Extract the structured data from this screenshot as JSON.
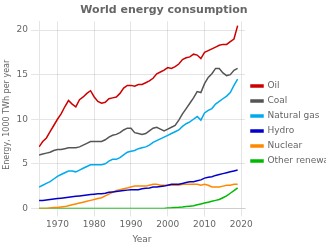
{
  "chart_data": {
    "type": "line",
    "title": "World energy consumption",
    "xlabel": "Year",
    "ylabel": "Energy, 1000 TWh per year",
    "xlim": [
      1965,
      2021
    ],
    "ylim": [
      0,
      21
    ],
    "xticks": [
      1970,
      1980,
      1990,
      2000,
      2010,
      2020
    ],
    "yticks": [
      0,
      5,
      10,
      15,
      20
    ],
    "grid": true,
    "legend": "right",
    "x": [
      1965,
      1966,
      1967,
      1968,
      1969,
      1970,
      1971,
      1972,
      1973,
      1974,
      1975,
      1976,
      1977,
      1978,
      1979,
      1980,
      1981,
      1982,
      1983,
      1984,
      1985,
      1986,
      1987,
      1988,
      1989,
      1990,
      1991,
      1992,
      1993,
      1994,
      1995,
      1996,
      1997,
      1998,
      1999,
      2000,
      2001,
      2002,
      2003,
      2004,
      2005,
      2006,
      2007,
      2008,
      2009,
      2010,
      2011,
      2012,
      2013,
      2014,
      2015,
      2016,
      2017,
      2018,
      2019
    ],
    "series": [
      {
        "name": "Oil",
        "color": "#cc0000",
        "values": [
          6.9,
          7.5,
          7.9,
          8.6,
          9.3,
          10.0,
          10.6,
          11.4,
          12.1,
          11.7,
          11.4,
          12.2,
          12.5,
          12.9,
          13.2,
          12.5,
          12.0,
          11.8,
          11.9,
          12.3,
          12.4,
          12.5,
          12.9,
          13.5,
          13.8,
          13.8,
          13.7,
          13.9,
          13.9,
          14.1,
          14.3,
          14.6,
          15.1,
          15.3,
          15.5,
          15.8,
          15.7,
          15.9,
          16.2,
          16.7,
          16.9,
          17.0,
          17.3,
          17.2,
          16.8,
          17.5,
          17.7,
          17.9,
          18.1,
          18.3,
          18.4,
          18.4,
          18.7,
          19.0,
          20.5
        ]
      },
      {
        "name": "Coal",
        "color": "#555555",
        "values": [
          6.0,
          6.1,
          6.2,
          6.3,
          6.5,
          6.6,
          6.6,
          6.7,
          6.8,
          6.8,
          6.8,
          6.9,
          7.1,
          7.3,
          7.5,
          7.5,
          7.5,
          7.5,
          7.7,
          8.0,
          8.2,
          8.3,
          8.5,
          8.8,
          9.0,
          9.0,
          8.5,
          8.4,
          8.3,
          8.4,
          8.7,
          9.0,
          9.1,
          8.9,
          8.7,
          8.9,
          9.1,
          9.3,
          9.9,
          10.6,
          11.2,
          11.8,
          12.4,
          13.1,
          13.0,
          14.0,
          14.7,
          15.1,
          15.7,
          15.7,
          15.2,
          14.9,
          15.0,
          15.5,
          15.7
        ]
      },
      {
        "name": "Natural gas",
        "color": "#00aaee",
        "values": [
          2.4,
          2.6,
          2.8,
          3.0,
          3.3,
          3.6,
          3.8,
          4.0,
          4.2,
          4.2,
          4.1,
          4.3,
          4.5,
          4.7,
          4.9,
          4.9,
          4.9,
          4.9,
          5.0,
          5.3,
          5.5,
          5.5,
          5.7,
          6.0,
          6.3,
          6.4,
          6.5,
          6.7,
          6.8,
          6.9,
          7.1,
          7.4,
          7.6,
          7.8,
          8.0,
          8.2,
          8.4,
          8.6,
          8.8,
          9.2,
          9.5,
          9.7,
          10.0,
          10.3,
          9.9,
          10.7,
          11.0,
          11.2,
          11.7,
          12.0,
          12.3,
          12.6,
          13.0,
          13.8,
          14.5
        ]
      },
      {
        "name": "Hydro",
        "color": "#0000cc",
        "values": [
          0.9,
          0.9,
          0.95,
          1.0,
          1.05,
          1.1,
          1.15,
          1.2,
          1.25,
          1.3,
          1.35,
          1.4,
          1.45,
          1.5,
          1.55,
          1.6,
          1.65,
          1.65,
          1.7,
          1.8,
          1.85,
          1.9,
          1.95,
          2.0,
          2.05,
          2.1,
          2.1,
          2.1,
          2.2,
          2.25,
          2.3,
          2.4,
          2.4,
          2.45,
          2.5,
          2.6,
          2.7,
          2.7,
          2.7,
          2.8,
          2.9,
          3.0,
          3.0,
          3.1,
          3.2,
          3.4,
          3.5,
          3.55,
          3.7,
          3.8,
          3.9,
          4.0,
          4.1,
          4.2,
          4.3
        ]
      },
      {
        "name": "Nuclear",
        "color": "#ff8800",
        "values": [
          0.0,
          0.0,
          0.0,
          0.05,
          0.1,
          0.1,
          0.15,
          0.2,
          0.3,
          0.4,
          0.5,
          0.6,
          0.7,
          0.8,
          0.9,
          1.0,
          1.1,
          1.2,
          1.4,
          1.6,
          1.8,
          2.0,
          2.1,
          2.2,
          2.3,
          2.4,
          2.5,
          2.5,
          2.5,
          2.5,
          2.6,
          2.7,
          2.7,
          2.6,
          2.6,
          2.6,
          2.6,
          2.6,
          2.6,
          2.7,
          2.7,
          2.7,
          2.7,
          2.7,
          2.6,
          2.7,
          2.6,
          2.4,
          2.4,
          2.4,
          2.5,
          2.6,
          2.6,
          2.7,
          2.7
        ]
      },
      {
        "name": "Other renewable",
        "color": "#00bb00",
        "values": [
          0.0,
          0.0,
          0.0,
          0.0,
          0.0,
          0.0,
          0.0,
          0.0,
          0.0,
          0.0,
          0.0,
          0.0,
          0.0,
          0.0,
          0.0,
          0.0,
          0.0,
          0.0,
          0.0,
          0.0,
          0.0,
          0.0,
          0.0,
          0.0,
          0.0,
          0.0,
          0.0,
          0.0,
          0.0,
          0.0,
          0.0,
          0.0,
          0.0,
          0.0,
          0.0,
          0.05,
          0.07,
          0.1,
          0.12,
          0.15,
          0.2,
          0.25,
          0.3,
          0.4,
          0.5,
          0.6,
          0.7,
          0.8,
          0.9,
          1.0,
          1.2,
          1.4,
          1.7,
          2.0,
          2.3
        ]
      }
    ]
  }
}
